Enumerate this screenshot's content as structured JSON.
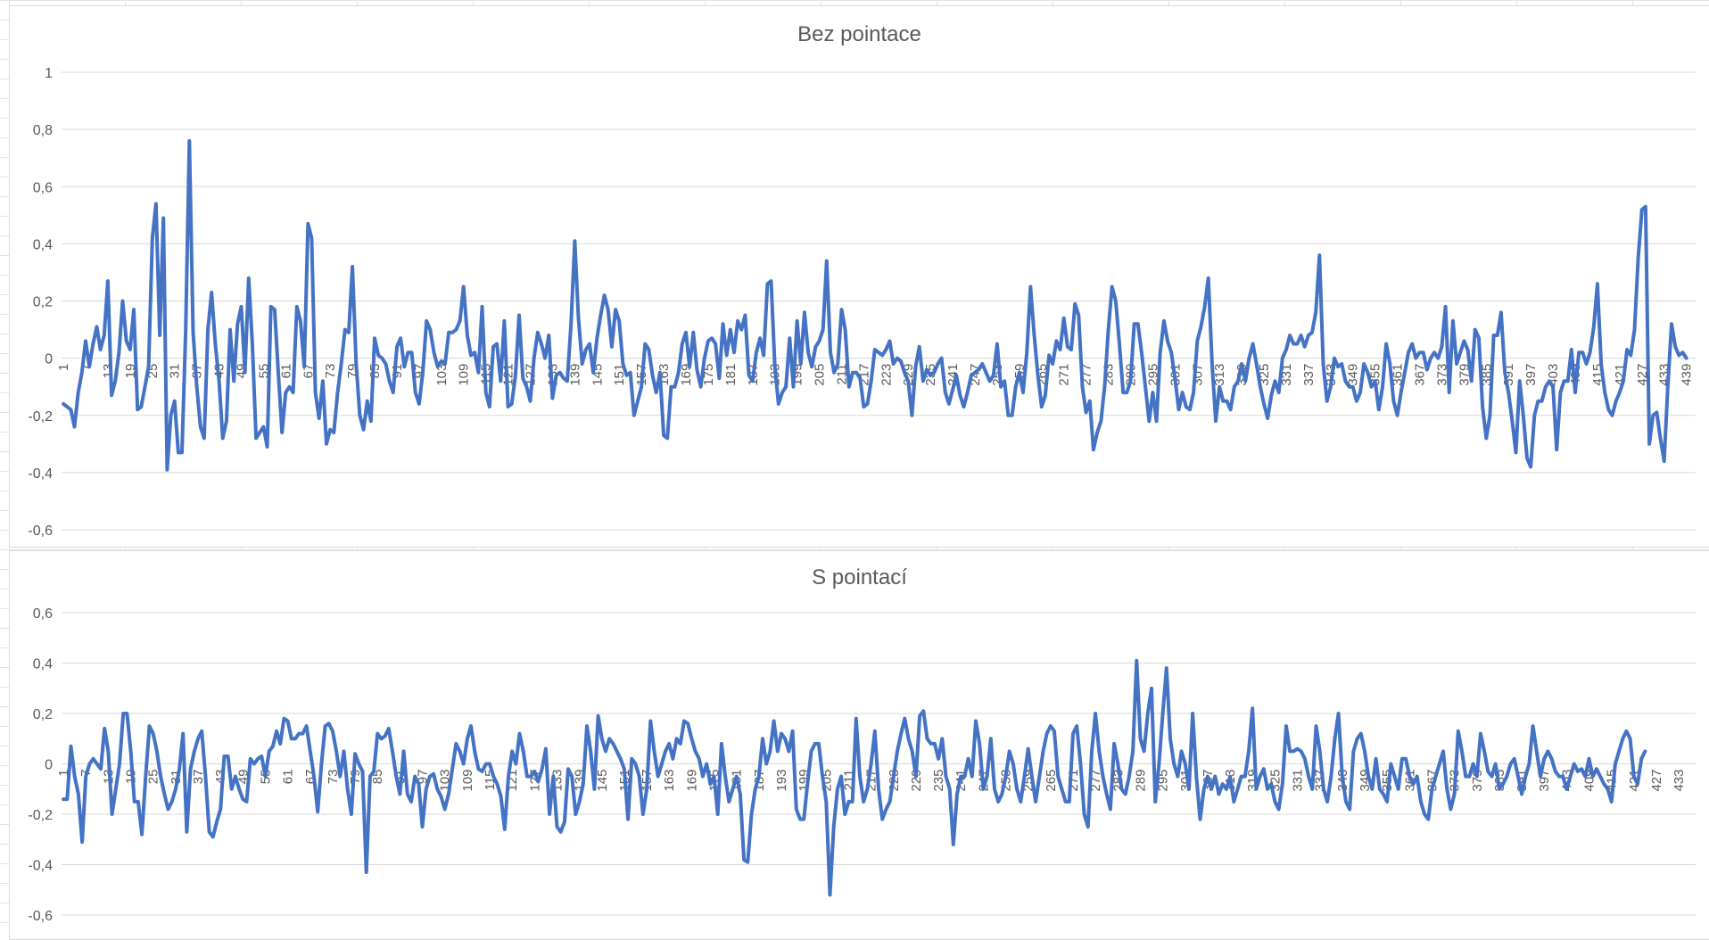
{
  "colors": {
    "series": "#4472C4",
    "gridline": "#d9d9d9",
    "text": "#595959"
  },
  "chart_data": [
    {
      "type": "line",
      "title": "Bez pointace",
      "xlabel": "",
      "ylabel": "",
      "ylim": [
        -0.6,
        1
      ],
      "y_ticks": [
        "1",
        "0,8",
        "0,6",
        "0,4",
        "0,2",
        "0",
        "-0,2",
        "-0,4",
        "-0,6"
      ],
      "y_tick_values": [
        1,
        0.8,
        0.6,
        0.4,
        0.2,
        0,
        -0.2,
        -0.4,
        -0.6
      ],
      "x_tick_step": 6,
      "x_count": 441,
      "grid": true,
      "legend": "none",
      "series": [
        {
          "values": [
            -0.16,
            -0.17,
            -0.18,
            -0.24,
            -0.12,
            -0.05,
            0.06,
            -0.03,
            0.05,
            0.11,
            0.03,
            0.08,
            0.27,
            -0.13,
            -0.08,
            0.02,
            0.2,
            0.06,
            0.03,
            0.17,
            -0.18,
            -0.17,
            -0.1,
            -0.03,
            0.42,
            0.54,
            0.08,
            0.49,
            -0.39,
            -0.2,
            -0.15,
            -0.33,
            -0.33,
            0.1,
            0.76,
            0.09,
            -0.1,
            -0.24,
            -0.28,
            0.1,
            0.23,
            0.05,
            -0.08,
            -0.28,
            -0.22,
            0.1,
            -0.08,
            0.12,
            0.18,
            -0.05,
            0.28,
            0.05,
            -0.28,
            -0.26,
            -0.24,
            -0.31,
            0.18,
            0.17,
            -0.05,
            -0.26,
            -0.12,
            -0.1,
            -0.12,
            0.18,
            0.13,
            -0.03,
            0.47,
            0.42,
            -0.12,
            -0.21,
            -0.08,
            -0.3,
            -0.25,
            -0.26,
            -0.12,
            -0.02,
            0.1,
            0.09,
            0.32,
            -0.02,
            -0.2,
            -0.25,
            -0.15,
            -0.22,
            0.07,
            0.01,
            0.0,
            -0.02,
            -0.08,
            -0.12,
            0.04,
            0.07,
            -0.03,
            0.02,
            0.02,
            -0.12,
            -0.16,
            -0.05,
            0.13,
            0.1,
            0.02,
            -0.03,
            -0.01,
            -0.02,
            0.09,
            0.09,
            0.1,
            0.13,
            0.25,
            0.08,
            0.01,
            0.02,
            -0.05,
            0.18,
            -0.12,
            -0.17,
            0.04,
            0.05,
            -0.08,
            0.13,
            -0.17,
            -0.16,
            -0.06,
            0.15,
            -0.07,
            -0.1,
            -0.15,
            0.0,
            0.09,
            0.05,
            0.0,
            0.08,
            -0.14,
            -0.06,
            -0.05,
            -0.07,
            -0.08,
            0.12,
            0.41,
            0.14,
            -0.02,
            0.03,
            0.05,
            -0.05,
            0.07,
            0.15,
            0.22,
            0.17,
            0.04,
            0.17,
            0.13,
            -0.02,
            -0.06,
            -0.05,
            -0.2,
            -0.15,
            -0.1,
            0.05,
            0.03,
            -0.06,
            -0.12,
            -0.05,
            -0.27,
            -0.28,
            -0.1,
            -0.1,
            -0.05,
            0.05,
            0.09,
            -0.03,
            0.09,
            -0.04,
            -0.1,
            0.0,
            0.06,
            0.07,
            0.05,
            -0.07,
            0.12,
            0.01,
            0.1,
            0.02,
            0.13,
            0.1,
            0.15,
            -0.06,
            -0.08,
            0.02,
            0.07,
            0.01,
            0.26,
            0.27,
            -0.03,
            -0.16,
            -0.12,
            -0.1,
            0.07,
            -0.1,
            0.13,
            -0.02,
            0.16,
            0.02,
            -0.03,
            0.04,
            0.06,
            0.1,
            0.34,
            0.02,
            -0.05,
            -0.02,
            0.17,
            0.1,
            -0.1,
            -0.05,
            -0.05,
            -0.07,
            -0.17,
            -0.16,
            -0.08,
            0.03,
            0.02,
            0.01,
            0.03,
            0.06,
            -0.02,
            0.0,
            -0.01,
            -0.05,
            -0.08,
            -0.2,
            -0.03,
            0.04,
            -0.08,
            -0.04,
            -0.06,
            -0.05,
            -0.02,
            0.0,
            -0.12,
            -0.16,
            -0.11,
            -0.06,
            -0.13,
            -0.17,
            -0.12,
            -0.06,
            -0.05,
            -0.04,
            -0.02,
            -0.05,
            -0.08,
            -0.06,
            0.05,
            -0.1,
            -0.08,
            -0.2,
            -0.2,
            -0.1,
            -0.05,
            -0.12,
            0.02,
            0.25,
            0.08,
            -0.06,
            -0.17,
            -0.13,
            0.01,
            -0.02,
            0.06,
            0.03,
            0.14,
            0.04,
            0.03,
            0.19,
            0.15,
            -0.1,
            -0.19,
            -0.15,
            -0.32,
            -0.26,
            -0.22,
            -0.1,
            0.1,
            0.25,
            0.2,
            0.05,
            -0.12,
            -0.12,
            -0.08,
            0.12,
            0.12,
            0.02,
            -0.1,
            -0.22,
            -0.12,
            -0.22,
            0.02,
            0.13,
            0.06,
            0.02,
            -0.07,
            -0.18,
            -0.12,
            -0.17,
            -0.18,
            -0.12,
            0.06,
            0.11,
            0.18,
            0.28,
            -0.02,
            -0.22,
            -0.1,
            -0.15,
            -0.15,
            -0.18,
            -0.1,
            -0.08,
            -0.02,
            -0.08,
            0.0,
            0.05,
            -0.02,
            -0.1,
            -0.16,
            -0.21,
            -0.13,
            -0.08,
            -0.12,
            0.0,
            0.03,
            0.08,
            0.05,
            0.05,
            0.08,
            0.04,
            0.08,
            0.09,
            0.16,
            0.36,
            -0.02,
            -0.15,
            -0.1,
            0.0,
            -0.03,
            -0.02,
            -0.08,
            -0.1,
            -0.1,
            -0.15,
            -0.12,
            -0.02,
            -0.05,
            -0.1,
            -0.08,
            -0.18,
            -0.1,
            0.05,
            -0.02,
            -0.15,
            -0.2,
            -0.12,
            -0.05,
            0.02,
            0.05,
            0.0,
            0.02,
            0.02,
            -0.04,
            0.0,
            0.02,
            0.0,
            0.04,
            0.18,
            -0.12,
            0.13,
            -0.02,
            0.02,
            0.06,
            0.03,
            -0.08,
            0.1,
            0.07,
            -0.17,
            -0.28,
            -0.2,
            0.08,
            0.08,
            0.16,
            -0.05,
            -0.12,
            -0.22,
            -0.33,
            -0.08,
            -0.2,
            -0.35,
            -0.38,
            -0.2,
            -0.15,
            -0.15,
            -0.1,
            -0.08,
            -0.1,
            -0.32,
            -0.12,
            -0.08,
            -0.08,
            0.03,
            -0.12,
            0.02,
            0.02,
            -0.02,
            0.02,
            0.11,
            0.26,
            -0.02,
            -0.12,
            -0.18,
            -0.2,
            -0.15,
            -0.12,
            -0.08,
            0.03,
            0.01,
            0.1,
            0.35,
            0.52,
            0.53,
            -0.3,
            -0.2,
            -0.19,
            -0.28,
            -0.36,
            -0.1,
            0.12,
            0.04,
            0.01,
            0.02,
            0.0
          ]
        }
      ]
    },
    {
      "type": "line",
      "title": "S pointací",
      "xlabel": "",
      "ylabel": "",
      "ylim": [
        -0.6,
        0.6
      ],
      "y_ticks": [
        "0,6",
        "0,4",
        "0,2",
        "0",
        "-0,2",
        "-0,4",
        "-0,6"
      ],
      "y_tick_values": [
        0.6,
        0.4,
        0.2,
        0,
        -0.2,
        -0.4,
        -0.6
      ],
      "x_tick_step": 6,
      "x_count": 437,
      "grid": true,
      "legend": "none",
      "series": [
        {
          "values": [
            -0.14,
            -0.14,
            0.07,
            -0.05,
            -0.12,
            -0.31,
            -0.05,
            0.0,
            0.02,
            0.0,
            -0.02,
            0.14,
            0.05,
            -0.2,
            -0.1,
            0.0,
            0.2,
            0.2,
            0.05,
            -0.15,
            -0.15,
            -0.28,
            -0.05,
            0.15,
            0.12,
            0.05,
            -0.05,
            -0.12,
            -0.18,
            -0.15,
            -0.1,
            -0.02,
            0.12,
            -0.27,
            -0.02,
            0.05,
            0.1,
            0.13,
            -0.05,
            -0.27,
            -0.29,
            -0.23,
            -0.18,
            0.03,
            0.03,
            -0.1,
            -0.05,
            -0.1,
            -0.14,
            -0.15,
            0.02,
            0.0,
            0.02,
            0.03,
            -0.05,
            0.05,
            0.07,
            0.13,
            0.08,
            0.18,
            0.17,
            0.1,
            0.1,
            0.12,
            0.12,
            0.15,
            0.05,
            -0.05,
            -0.19,
            0.0,
            0.15,
            0.16,
            0.13,
            0.05,
            -0.05,
            0.05,
            -0.1,
            -0.2,
            0.04,
            0.0,
            -0.03,
            -0.43,
            -0.05,
            -0.03,
            0.12,
            0.1,
            0.11,
            0.14,
            0.05,
            -0.05,
            -0.12,
            0.05,
            -0.12,
            -0.15,
            -0.05,
            -0.08,
            -0.25,
            -0.1,
            -0.05,
            -0.04,
            -0.1,
            -0.13,
            -0.18,
            -0.12,
            -0.02,
            0.08,
            0.05,
            0.0,
            0.1,
            0.15,
            0.05,
            -0.02,
            -0.03,
            0.0,
            0.0,
            -0.05,
            -0.08,
            -0.13,
            -0.26,
            -0.05,
            0.05,
            0.0,
            0.12,
            0.05,
            -0.05,
            -0.05,
            -0.03,
            -0.07,
            -0.02,
            0.06,
            -0.2,
            -0.05,
            -0.25,
            -0.27,
            -0.23,
            -0.02,
            -0.05,
            -0.2,
            -0.15,
            -0.08,
            0.15,
            0.05,
            -0.1,
            0.19,
            0.1,
            0.05,
            0.1,
            0.08,
            0.05,
            0.02,
            -0.02,
            -0.22,
            0.02,
            0.0,
            -0.05,
            -0.2,
            -0.1,
            0.17,
            0.05,
            -0.05,
            0.0,
            0.05,
            0.08,
            0.02,
            0.1,
            0.08,
            0.17,
            0.16,
            0.1,
            0.05,
            0.02,
            -0.05,
            0.0,
            -0.08,
            -0.05,
            -0.2,
            0.08,
            -0.05,
            -0.15,
            -0.1,
            -0.05,
            -0.12,
            -0.38,
            -0.39,
            -0.2,
            -0.1,
            -0.05,
            0.1,
            0.0,
            0.05,
            0.17,
            0.05,
            0.12,
            0.1,
            0.05,
            0.13,
            -0.18,
            -0.22,
            -0.22,
            -0.08,
            0.05,
            0.08,
            0.08,
            -0.05,
            -0.15,
            -0.52,
            -0.25,
            -0.1,
            -0.05,
            -0.2,
            -0.15,
            -0.15,
            0.18,
            -0.05,
            -0.15,
            -0.1,
            0.0,
            0.13,
            -0.1,
            -0.22,
            -0.18,
            -0.15,
            -0.05,
            0.05,
            0.12,
            0.18,
            0.1,
            0.05,
            -0.05,
            0.19,
            0.21,
            0.1,
            0.08,
            0.08,
            0.02,
            0.1,
            -0.05,
            -0.1,
            -0.32,
            -0.12,
            -0.05,
            -0.05,
            0.02,
            -0.05,
            0.17,
            0.08,
            -0.1,
            -0.05,
            0.1,
            -0.1,
            -0.15,
            -0.12,
            -0.05,
            0.05,
            0.0,
            -0.1,
            -0.15,
            -0.05,
            0.06,
            -0.05,
            -0.15,
            -0.05,
            0.05,
            0.12,
            0.15,
            0.13,
            -0.05,
            -0.1,
            -0.15,
            -0.15,
            0.12,
            0.15,
            0.0,
            -0.2,
            -0.25,
            0.05,
            0.2,
            0.05,
            -0.05,
            -0.12,
            -0.18,
            0.08,
            0.0,
            -0.1,
            -0.12,
            -0.05,
            0.05,
            0.41,
            0.1,
            0.05,
            0.2,
            0.3,
            -0.15,
            0.0,
            0.2,
            0.38,
            0.1,
            0.0,
            -0.05,
            0.05,
            0.0,
            -0.1,
            0.2,
            -0.05,
            -0.22,
            -0.1,
            -0.05,
            -0.1,
            -0.05,
            -0.12,
            -0.08,
            -0.1,
            -0.05,
            -0.15,
            -0.1,
            -0.05,
            -0.05,
            0.05,
            0.22,
            -0.1,
            -0.05,
            -0.02,
            -0.1,
            -0.08,
            -0.15,
            -0.18,
            -0.08,
            0.15,
            0.05,
            0.05,
            0.06,
            0.05,
            0.02,
            -0.05,
            -0.1,
            0.15,
            0.05,
            -0.1,
            -0.15,
            -0.05,
            0.1,
            0.2,
            -0.05,
            -0.15,
            -0.18,
            0.05,
            0.1,
            0.12,
            0.05,
            -0.05,
            -0.1,
            0.02,
            -0.1,
            -0.12,
            -0.15,
            0.0,
            -0.05,
            -0.1,
            0.02,
            0.02,
            -0.05,
            -0.08,
            -0.05,
            -0.15,
            -0.2,
            -0.22,
            -0.1,
            -0.05,
            0.0,
            0.05,
            -0.1,
            -0.18,
            -0.12,
            0.13,
            0.05,
            -0.05,
            -0.05,
            0.0,
            -0.05,
            0.12,
            0.05,
            -0.03,
            -0.05,
            0.0,
            -0.1,
            -0.08,
            -0.05,
            0.0,
            0.02,
            -0.05,
            -0.12,
            -0.05,
            0.0,
            0.15,
            0.05,
            -0.05,
            0.02,
            0.05,
            0.02,
            -0.03,
            -0.05,
            -0.05,
            -0.1,
            -0.05,
            0.0,
            -0.03,
            -0.02,
            -0.05,
            0.02,
            -0.05,
            -0.02,
            -0.05,
            -0.08,
            -0.1,
            -0.15,
            0.0,
            0.05,
            0.1,
            0.13,
            0.1,
            -0.05,
            -0.08,
            0.02,
            0.05
          ]
        }
      ]
    }
  ]
}
